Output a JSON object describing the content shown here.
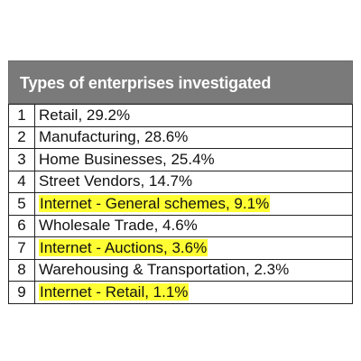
{
  "table": {
    "header": "Types of enterprises investigated",
    "highlight_color": "#ffff33",
    "rows": [
      {
        "num": "1",
        "text": "Retail, 29.2%",
        "highlighted": false
      },
      {
        "num": "2",
        "text": "Manufacturing, 28.6%",
        "highlighted": false
      },
      {
        "num": "3",
        "text": "Home Businesses, 25.4%",
        "highlighted": false
      },
      {
        "num": "4",
        "text": "Street Vendors, 14.7%",
        "highlighted": false
      },
      {
        "num": "5",
        "text": "Internet - General schemes, 9.1%",
        "highlighted": true
      },
      {
        "num": "6",
        "text": "Wholesale Trade, 4.6%",
        "highlighted": false
      },
      {
        "num": "7",
        "text": "Internet - Auctions, 3.6%",
        "highlighted": true
      },
      {
        "num": "8",
        "text": "Warehousing & Transportation, 2.3%",
        "highlighted": false
      },
      {
        "num": "9",
        "text": "Internet - Retail, 1.1%",
        "highlighted": true
      }
    ]
  }
}
